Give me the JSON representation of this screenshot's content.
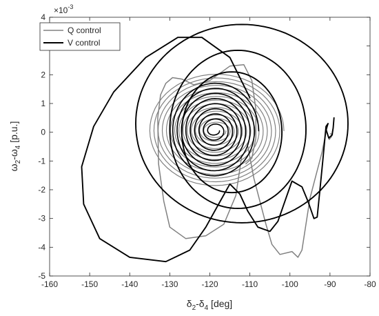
{
  "chart_data": {
    "type": "line",
    "title": "",
    "xlabel": {
      "base1": "δ",
      "sub1": "2",
      "mid": "-δ",
      "sub2": "4",
      "unit": " [deg]"
    },
    "ylabel": {
      "base1": "ω",
      "sub1": "2",
      "mid": "-ω",
      "sub2": "4",
      "unit": " [p.u.]"
    },
    "y_exponent": {
      "base": "×10",
      "power": "-3"
    },
    "xlim": [
      -160,
      -80
    ],
    "ylim": [
      -5,
      4
    ],
    "x_ticks": [
      -160,
      -150,
      -140,
      -130,
      -120,
      -110,
      -100,
      -90,
      -80
    ],
    "y_ticks": [
      -5,
      -4,
      -3,
      -2,
      -1,
      0,
      1,
      2,
      3,
      4
    ],
    "grid": false,
    "legend_position": "top-left",
    "series": [
      {
        "name": "Q control",
        "color": "#808080",
        "segments": [
          [
            [
              -110.5,
              -0.5
            ],
            [
              -109,
              -1.6
            ],
            [
              -106,
              -3.2
            ],
            [
              -104.5,
              -3.9
            ],
            [
              -102.5,
              -4.25
            ],
            [
              -99.5,
              -4.15
            ],
            [
              -98,
              -4.35
            ],
            [
              -97,
              -4.1
            ],
            [
              -96,
              -3.2
            ],
            [
              -95,
              -2.3
            ],
            [
              -93.5,
              -1.5
            ],
            [
              -92,
              -0.7
            ],
            [
              -91,
              0
            ],
            [
              -90.5,
              0.3
            ]
          ],
          [
            [
              -91,
              0.1
            ],
            [
              -90.2,
              -0.25
            ],
            [
              -89.6,
              -0.15
            ],
            [
              -89.2,
              0.15
            ],
            [
              -89.4,
              -0.1
            ],
            [
              -89.9,
              -0.05
            ]
          ],
          [
            [
              -112,
              -0.8
            ],
            [
              -113.5,
              -2.2
            ],
            [
              -116.5,
              -3.2
            ],
            [
              -121,
              -3.6
            ],
            [
              -126,
              -3.7
            ],
            [
              -130,
              -3.3
            ],
            [
              -131.5,
              -2.4
            ],
            [
              -132.8,
              -1.1
            ],
            [
              -133,
              0.5
            ],
            [
              -132.3,
              1.3
            ],
            [
              -131,
              1.7
            ],
            [
              -129.3,
              1.9
            ],
            [
              -127,
              1.85
            ],
            [
              -124,
              1.65
            ],
            [
              -120,
              1.8
            ],
            [
              -115,
              2.3
            ],
            [
              -111.5,
              2.35
            ],
            [
              -109.5,
              1.8
            ],
            [
              -108.5,
              0.8
            ],
            [
              -108.5,
              -0.2
            ],
            [
              -109.5,
              -0.9
            ],
            [
              -111,
              -1.1
            ]
          ]
        ],
        "spirals": [
          {
            "center": [
              -118.5,
              0.05
            ],
            "ax0": 17,
            "ay0": 2.0,
            "ax1": 2.5,
            "ay1": 0.2,
            "turns": 14
          }
        ]
      },
      {
        "name": "V control",
        "color": "#000000",
        "segments": [
          [
            [
              -110,
              1.2
            ],
            [
              -115,
              2.6
            ],
            [
              -122,
              3.3
            ],
            [
              -128,
              3.3
            ],
            [
              -136,
              2.6
            ],
            [
              -144,
              1.4
            ],
            [
              -149,
              0.2
            ],
            [
              -152,
              -1.2
            ],
            [
              -151.5,
              -2.5
            ],
            [
              -147.5,
              -3.7
            ],
            [
              -140,
              -4.35
            ],
            [
              -131,
              -4.5
            ],
            [
              -125,
              -4.1
            ],
            [
              -121,
              -3.3
            ],
            [
              -117,
              -2.3
            ],
            [
              -115,
              -1.8
            ],
            [
              -112.5,
              -2.15
            ],
            [
              -110.5,
              -2.75
            ],
            [
              -108,
              -3.3
            ],
            [
              -105,
              -3.45
            ],
            [
              -103,
              -3.1
            ],
            [
              -101,
              -2.3
            ],
            [
              -99.5,
              -1.7
            ],
            [
              -97,
              -1.9
            ],
            [
              -95.5,
              -2.4
            ],
            [
              -94,
              -3.0
            ],
            [
              -93.2,
              -2.95
            ],
            [
              -92.5,
              -2.0
            ],
            [
              -91.8,
              -1.0
            ],
            [
              -91,
              0.2
            ],
            [
              -90.5,
              0.3
            ]
          ],
          [
            [
              -90.5,
              0.3
            ],
            [
              -91,
              0.1
            ],
            [
              -90.3,
              -0.2
            ],
            [
              -89.5,
              -0.1
            ],
            [
              -89.2,
              0.15
            ],
            [
              -89,
              0.5
            ]
          ]
        ],
        "ellipses": [
          {
            "cx": -112,
            "cy": 0.3,
            "rx": 26.5,
            "ry": 3.45
          },
          {
            "cx": -113,
            "cy": 0.1,
            "rx": 17,
            "ry": 2.75
          },
          {
            "cx": -114.5,
            "cy": 0.0,
            "rx": 12.5,
            "ry": 2.1
          }
        ],
        "spirals": [
          {
            "center": [
              -118.8,
              0.05
            ],
            "ax0": 11,
            "ay0": 1.7,
            "ax1": 1.2,
            "ay1": 0.1,
            "turns": 9
          }
        ]
      }
    ]
  }
}
